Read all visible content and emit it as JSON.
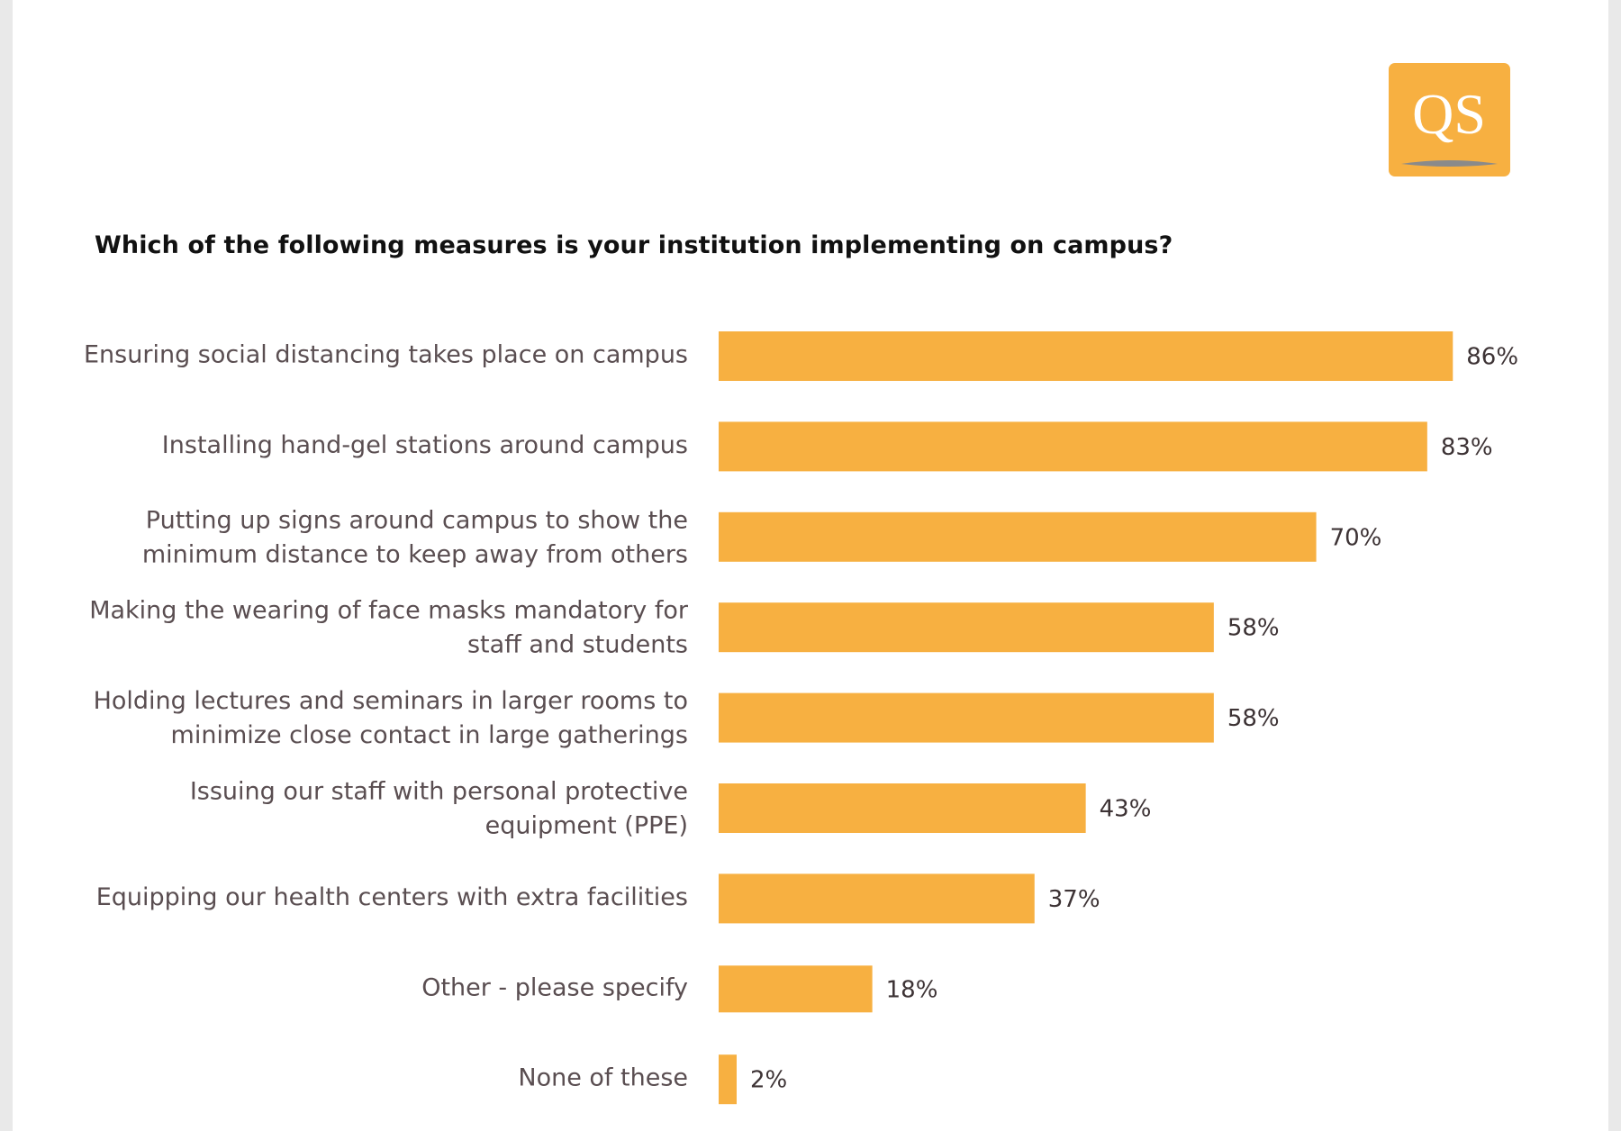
{
  "logo": {
    "text": "QS"
  },
  "chart_data": {
    "type": "bar",
    "orientation": "horizontal",
    "title": "Which of the following measures is your institution implementing on campus?",
    "categories": [
      "Ensuring social distancing takes place on campus",
      "Installing hand-gel stations around campus",
      "Putting up signs around campus to show the minimum distance to keep away from others",
      "Making the wearing of face masks mandatory for staff and students",
      "Holding lectures and seminars in larger rooms to minimize close contact in large gatherings",
      "Issuing our staff with personal protective equipment (PPE)",
      "Equipping our health centers with extra facilities",
      "Other - please specify",
      "None of these"
    ],
    "label_lines": [
      [
        "Ensuring social distancing takes place on campus"
      ],
      [
        "Installing hand-gel stations around campus"
      ],
      [
        "Putting up signs around campus to show the",
        "minimum distance to keep away from others"
      ],
      [
        "Making the wearing of face masks mandatory for",
        "staff and students"
      ],
      [
        "Holding lectures and seminars in larger rooms to",
        "minimize close contact in large gatherings"
      ],
      [
        "Issuing our staff with personal protective",
        "equipment (PPE)"
      ],
      [
        "Equipping our health centers with extra facilities"
      ],
      [
        "Other - please specify"
      ],
      [
        "None of these"
      ]
    ],
    "values": [
      86,
      83,
      70,
      58,
      58,
      43,
      37,
      18,
      2
    ],
    "value_labels": [
      "86%",
      "83%",
      "70%",
      "58%",
      "58%",
      "43%",
      "37%",
      "18%",
      "2%"
    ],
    "unit": "%",
    "xlim": [
      0,
      100
    ],
    "grid": false,
    "colors": {
      "bar": "#f7b041",
      "label": "#5a4e51",
      "value": "#3d3335"
    }
  }
}
